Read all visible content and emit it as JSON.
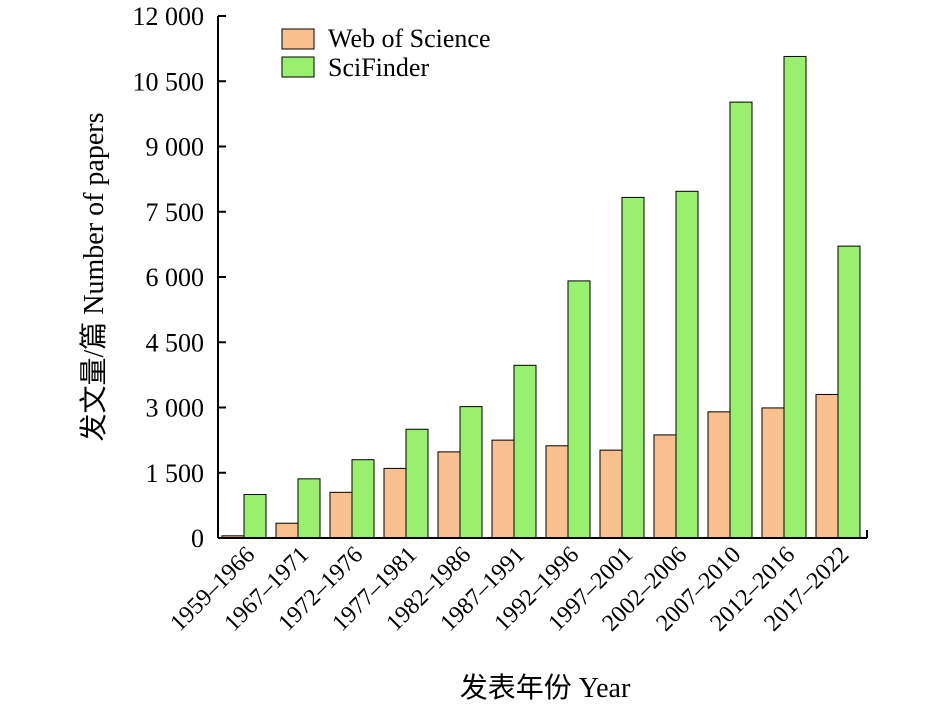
{
  "chart_data": {
    "type": "bar",
    "categories": [
      "1959–1966",
      "1967–1971",
      "1972–1976",
      "1977–1981",
      "1982–1986",
      "1987–1991",
      "1992–1996",
      "1997–2001",
      "2002–2006",
      "2007–2010",
      "2012–2016",
      "2017–2022"
    ],
    "series": [
      {
        "name": "Web of Science",
        "color": "#f9bf8f",
        "values": [
          50,
          340,
          1050,
          1600,
          1980,
          2250,
          2120,
          2020,
          2370,
          2900,
          2990,
          3300
        ]
      },
      {
        "name": "SciFinder",
        "color": "#99f06e",
        "values": [
          1000,
          1360,
          1800,
          2500,
          3020,
          3970,
          5910,
          7830,
          7970,
          10020,
          11070,
          6710
        ]
      }
    ],
    "xlabel": "发表年份 Year",
    "ylabel": "发文量/篇 Number of papers",
    "ylim": [
      0,
      12000
    ],
    "yticks": [
      0,
      1500,
      3000,
      4500,
      6000,
      7500,
      9000,
      10500,
      12000
    ],
    "ytick_labels": [
      "0",
      "1 500",
      "3 000",
      "4 500",
      "6 000",
      "7 500",
      "9 000",
      "10 500",
      "12 000"
    ],
    "legend_position": "top-left",
    "grid": false
  }
}
